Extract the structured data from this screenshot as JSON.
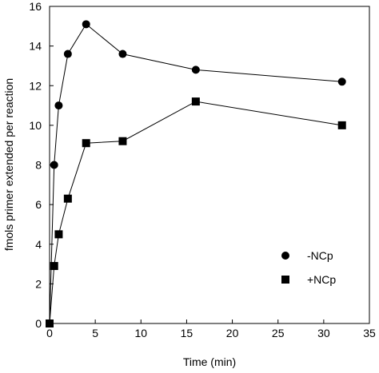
{
  "chart_data": {
    "type": "line",
    "xlabel": "Time (min)",
    "ylabel": "fmols primer extended per reaction",
    "xlim": [
      0,
      35
    ],
    "ylim": [
      0,
      16
    ],
    "xticks": [
      0,
      5,
      10,
      15,
      20,
      25,
      30,
      35
    ],
    "yticks": [
      0,
      2,
      4,
      6,
      8,
      10,
      12,
      14,
      16
    ],
    "grid": false,
    "legend_position": "bottom-right",
    "series": [
      {
        "name": "-NCp",
        "marker": "circle",
        "color": "#000000",
        "x": [
          0,
          0.5,
          1,
          2,
          4,
          8,
          16,
          32
        ],
        "y": [
          0,
          8.0,
          11.0,
          13.6,
          15.1,
          13.6,
          12.8,
          12.2
        ]
      },
      {
        "name": "+NCp",
        "marker": "square",
        "color": "#000000",
        "x": [
          0,
          0.5,
          1,
          2,
          4,
          8,
          16,
          32
        ],
        "y": [
          0,
          2.9,
          4.5,
          6.3,
          9.1,
          9.2,
          11.2,
          10.0
        ]
      }
    ]
  }
}
